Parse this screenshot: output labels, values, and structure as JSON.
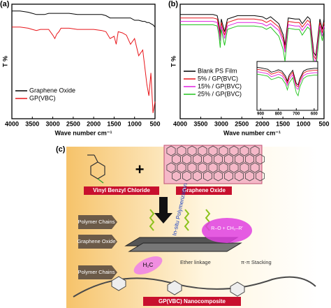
{
  "chart_data": [
    {
      "type": "line",
      "panel_label": "(a)",
      "x_label": "Wave number cm⁻¹",
      "y_label": "T %",
      "xlim": [
        4000,
        500
      ],
      "xticks": [
        4000,
        3500,
        3000,
        2500,
        2000,
        1500,
        1000,
        500
      ],
      "ylim": [
        0,
        100
      ],
      "yticks": [],
      "legend": "lower left",
      "x": [
        4000,
        3800,
        3600,
        3500,
        3400,
        3300,
        3200,
        3100,
        3000,
        2950,
        2900,
        2850,
        2800,
        2600,
        2400,
        2200,
        2000,
        1800,
        1700,
        1600,
        1500,
        1450,
        1400,
        1300,
        1200,
        1100,
        1000,
        900,
        800,
        750,
        700,
        650,
        600,
        550,
        500
      ],
      "series": [
        {
          "name": "Graphene Oxide",
          "color": "#000000",
          "values": [
            94,
            94,
            93,
            92,
            91,
            91,
            91,
            92,
            92,
            92,
            92,
            92,
            92,
            92,
            91,
            91,
            91,
            91,
            90,
            88,
            88,
            88,
            88,
            88,
            88,
            88,
            86,
            86,
            85,
            85,
            84,
            84,
            83,
            82,
            80
          ]
        },
        {
          "name": "GP(VBC)",
          "color": "#e8161b",
          "values": [
            80,
            80,
            79,
            78,
            77,
            78,
            78,
            78,
            73,
            70,
            74,
            76,
            79,
            79,
            78,
            78,
            78,
            77,
            76,
            70,
            72,
            65,
            76,
            75,
            73,
            65,
            70,
            55,
            60,
            45,
            30,
            20,
            40,
            5,
            15
          ]
        }
      ]
    },
    {
      "type": "line",
      "panel_label": "(b)",
      "x_label": "Wave number cm⁻¹",
      "y_label": "T %",
      "xlim": [
        4000,
        500
      ],
      "xticks": [
        4000,
        3500,
        3000,
        2500,
        2000,
        1500,
        1000,
        500
      ],
      "ylim": [
        0,
        100
      ],
      "yticks": [],
      "legend": "center left",
      "x": [
        4000,
        3600,
        3200,
        3100,
        3060,
        3025,
        3000,
        2920,
        2850,
        2600,
        2200,
        2000,
        1900,
        1800,
        1600,
        1490,
        1450,
        1370,
        1200,
        1100,
        1030,
        900,
        840,
        750,
        700,
        600,
        540,
        500
      ],
      "series": [
        {
          "name": "Blank PS Film",
          "color": "#000000",
          "values": [
            91,
            91,
            91,
            90,
            84,
            74,
            87,
            76,
            87,
            90,
            90,
            89,
            87,
            89,
            83,
            73,
            64,
            88,
            87,
            87,
            83,
            89,
            87,
            58,
            55,
            87,
            78,
            87
          ]
        },
        {
          "name": "5% / GP(BVC)",
          "color": "#e8161b",
          "values": [
            88,
            88,
            88,
            87,
            81,
            71,
            84,
            73,
            84,
            87,
            87,
            86,
            84,
            86,
            80,
            70,
            61,
            85,
            84,
            84,
            80,
            86,
            84,
            55,
            52,
            84,
            75,
            84
          ]
        },
        {
          "name": "15% / GP(BVC)",
          "color": "#e020e0",
          "values": [
            85,
            85,
            85,
            84,
            78,
            68,
            81,
            70,
            81,
            84,
            84,
            83,
            81,
            83,
            77,
            67,
            58,
            82,
            81,
            81,
            77,
            83,
            81,
            52,
            49,
            81,
            72,
            81
          ]
        },
        {
          "name": "25% / GP(BVC)",
          "color": "#22c41e",
          "values": [
            82,
            82,
            82,
            81,
            74,
            62,
            78,
            64,
            78,
            81,
            81,
            80,
            78,
            80,
            72,
            60,
            50,
            79,
            78,
            78,
            73,
            80,
            78,
            46,
            42,
            78,
            68,
            78
          ]
        }
      ]
    },
    {
      "type": "line",
      "xlim": [
        920,
        580
      ],
      "xticks": [
        900,
        800,
        700,
        600
      ],
      "ylim": [
        0,
        100
      ],
      "yticks": [],
      "x": [
        920,
        900,
        860,
        840,
        820,
        800,
        780,
        760,
        750,
        740,
        720,
        700,
        690,
        680,
        660,
        640,
        620,
        600,
        580
      ],
      "series": [
        {
          "color": "#000000",
          "values": [
            88,
            87,
            84,
            78,
            80,
            83,
            80,
            70,
            60,
            72,
            82,
            55,
            52,
            65,
            80,
            84,
            85,
            86,
            86
          ]
        },
        {
          "color": "#e8161b",
          "values": [
            84,
            83,
            80,
            74,
            76,
            79,
            76,
            66,
            56,
            68,
            78,
            51,
            48,
            61,
            76,
            80,
            81,
            82,
            82
          ]
        },
        {
          "color": "#e020e0",
          "values": [
            79,
            78,
            75,
            69,
            71,
            74,
            71,
            61,
            51,
            63,
            73,
            46,
            43,
            56,
            71,
            75,
            76,
            77,
            77
          ]
        },
        {
          "color": "#22c41e",
          "values": [
            74,
            73,
            70,
            63,
            65,
            68,
            65,
            54,
            42,
            56,
            67,
            36,
            30,
            48,
            65,
            70,
            71,
            72,
            72
          ]
        }
      ]
    }
  ],
  "diagram": {
    "panel_label": "(c)",
    "monomer": "Vinyl Benzyl Chloride",
    "sheet": "Graphene Oxide",
    "process": "In-situ Polymerization",
    "tags": [
      "Polymer Chains",
      "Graphene Oxide",
      "Polymer Chains"
    ],
    "ether": "Ether linkage",
    "stacking": "π-π Stacking",
    "reaction": "R–O + CH₂–R′",
    "group": "H₂C",
    "product": "GP(VBC) Nanocomposite"
  }
}
